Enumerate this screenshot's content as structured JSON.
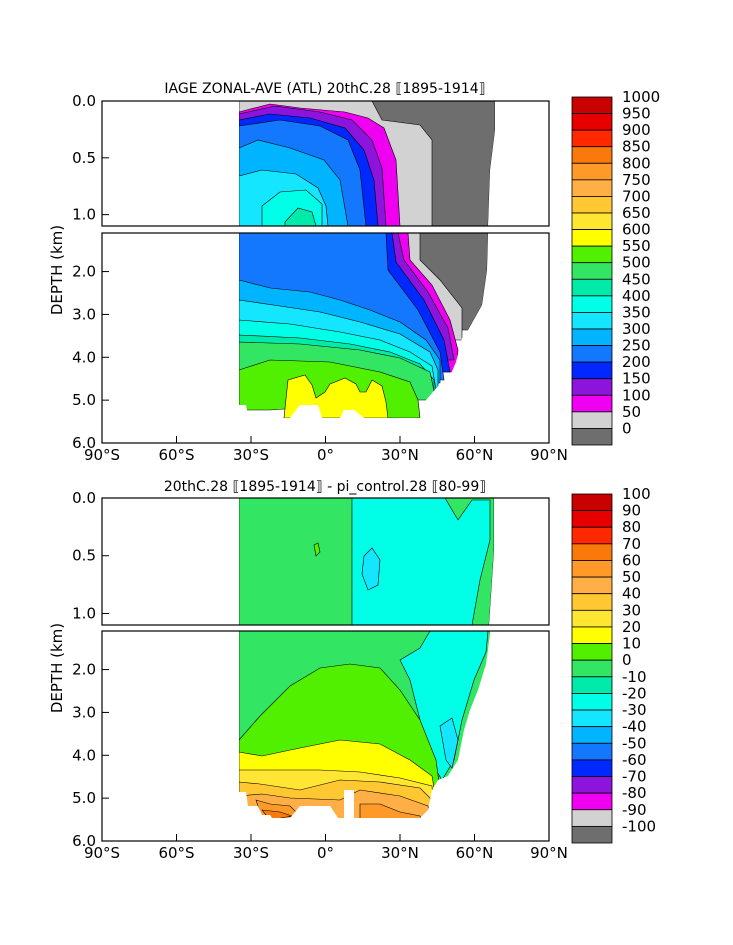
{
  "chart_data": [
    {
      "type": "heatmap",
      "title": "IAGE ZONAL-AVE (ATL) 20thC.28 ⟦1895-1914⟧",
      "ylabel": "DEPTH (km)",
      "xlabel": "",
      "x_ticks": [
        "90°S",
        "60°S",
        "30°S",
        "0°",
        "30°N",
        "60°N",
        "90°N"
      ],
      "x_tick_values": [
        -90,
        -60,
        -30,
        0,
        30,
        60,
        90
      ],
      "y_ticks_upper": [
        "0.0",
        "0.5",
        "1.0"
      ],
      "y_tick_values_upper": [
        0.0,
        0.5,
        1.0
      ],
      "y_ticks_lower": [
        "2.0",
        "3.0",
        "4.0",
        "5.0",
        "6.0"
      ],
      "y_tick_values_lower": [
        2.0,
        3.0,
        4.0,
        5.0,
        6.0
      ],
      "xlim": [
        -90,
        90
      ],
      "ylim_upper": [
        0.0,
        1.1
      ],
      "ylim_lower": [
        1.1,
        6.0
      ],
      "colorbar": {
        "labels": [
          "1000",
          "950",
          "900",
          "850",
          "800",
          "750",
          "700",
          "650",
          "600",
          "550",
          "500",
          "450",
          "400",
          "350",
          "300",
          "250",
          "200",
          "150",
          "100",
          "50",
          "0"
        ],
        "colors": [
          "#c80000",
          "#e60000",
          "#ff2800",
          "#f97a0a",
          "#ff9a28",
          "#ffaf46",
          "#ffc832",
          "#ffe632",
          "#ffff00",
          "#50f000",
          "#32e664",
          "#00ebaa",
          "#00ffe6",
          "#14e6ff",
          "#00b4ff",
          "#1478ff",
          "#0028ff",
          "#8c14dc",
          "#f000f0",
          "#d2d2d2",
          "#6e6e6e"
        ]
      }
    },
    {
      "type": "heatmap",
      "title": "20thC.28 ⟦1895-1914⟧ - pi_control.28 ⟦80-99⟧",
      "ylabel": "DEPTH (km)",
      "xlabel": "",
      "x_ticks": [
        "90°S",
        "60°S",
        "30°S",
        "0°",
        "30°N",
        "60°N",
        "90°N"
      ],
      "x_tick_values": [
        -90,
        -60,
        -30,
        0,
        30,
        60,
        90
      ],
      "y_ticks_upper": [
        "0.0",
        "0.5",
        "1.0"
      ],
      "y_tick_values_upper": [
        0.0,
        0.5,
        1.0
      ],
      "y_ticks_lower": [
        "2.0",
        "3.0",
        "4.0",
        "5.0",
        "6.0"
      ],
      "y_tick_values_lower": [
        2.0,
        3.0,
        4.0,
        5.0,
        6.0
      ],
      "xlim": [
        -90,
        90
      ],
      "ylim_upper": [
        0.0,
        1.1
      ],
      "ylim_lower": [
        1.1,
        6.0
      ],
      "colorbar": {
        "labels": [
          "100",
          "90",
          "80",
          "70",
          "60",
          "50",
          "40",
          "30",
          "20",
          "10",
          "0",
          "-10",
          "-20",
          "-30",
          "-40",
          "-50",
          "-60",
          "-70",
          "-80",
          "-90",
          "-100"
        ],
        "colors": [
          "#c80000",
          "#e60000",
          "#ff2800",
          "#f97a0a",
          "#ff9a28",
          "#ffaf46",
          "#ffc832",
          "#ffe632",
          "#ffff00",
          "#50f000",
          "#32e664",
          "#00ebaa",
          "#00ffe6",
          "#14e6ff",
          "#00b4ff",
          "#1478ff",
          "#0028ff",
          "#8c14dc",
          "#f000f0",
          "#d2d2d2",
          "#6e6e6e"
        ]
      }
    }
  ]
}
